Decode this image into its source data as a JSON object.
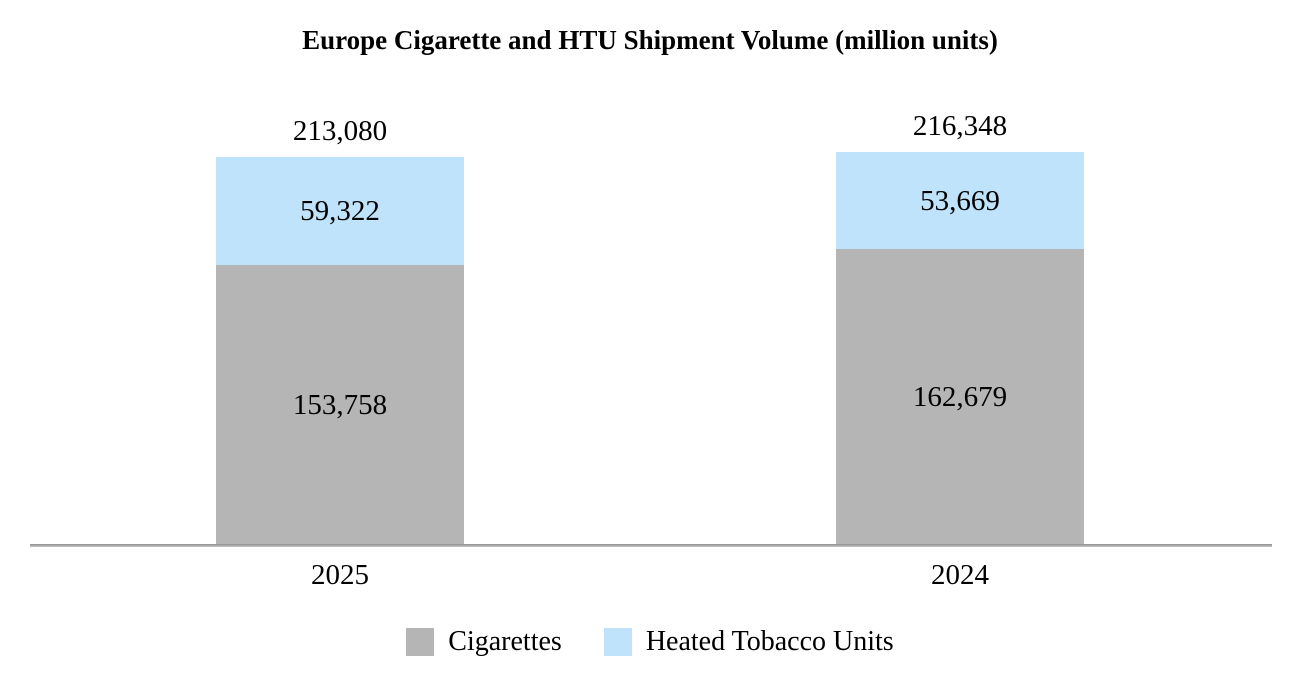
{
  "chart_data": {
    "type": "bar",
    "subtype": "stacked",
    "title": "Europe Cigarette and HTU Shipment Volume (million units)",
    "categories": [
      "2025",
      "2024"
    ],
    "series": [
      {
        "name": "Cigarettes",
        "color": "#b5b5b5",
        "values": [
          153758,
          162679
        ]
      },
      {
        "name": "Heated Tobacco Units",
        "color": "#bee3fa",
        "values": [
          59322,
          53669
        ]
      }
    ],
    "totals": [
      213080,
      216348
    ],
    "value_labels": {
      "cigarettes": [
        "153,758",
        "162,679"
      ],
      "heated_tobacco_units": [
        "59,322",
        "53,669"
      ],
      "totals": [
        "213,080",
        "216,348"
      ]
    },
    "legend_position": "bottom",
    "grid": false,
    "axis_line_color": "#9d9d9d",
    "background": "#ffffff",
    "text_color": "#000000"
  }
}
